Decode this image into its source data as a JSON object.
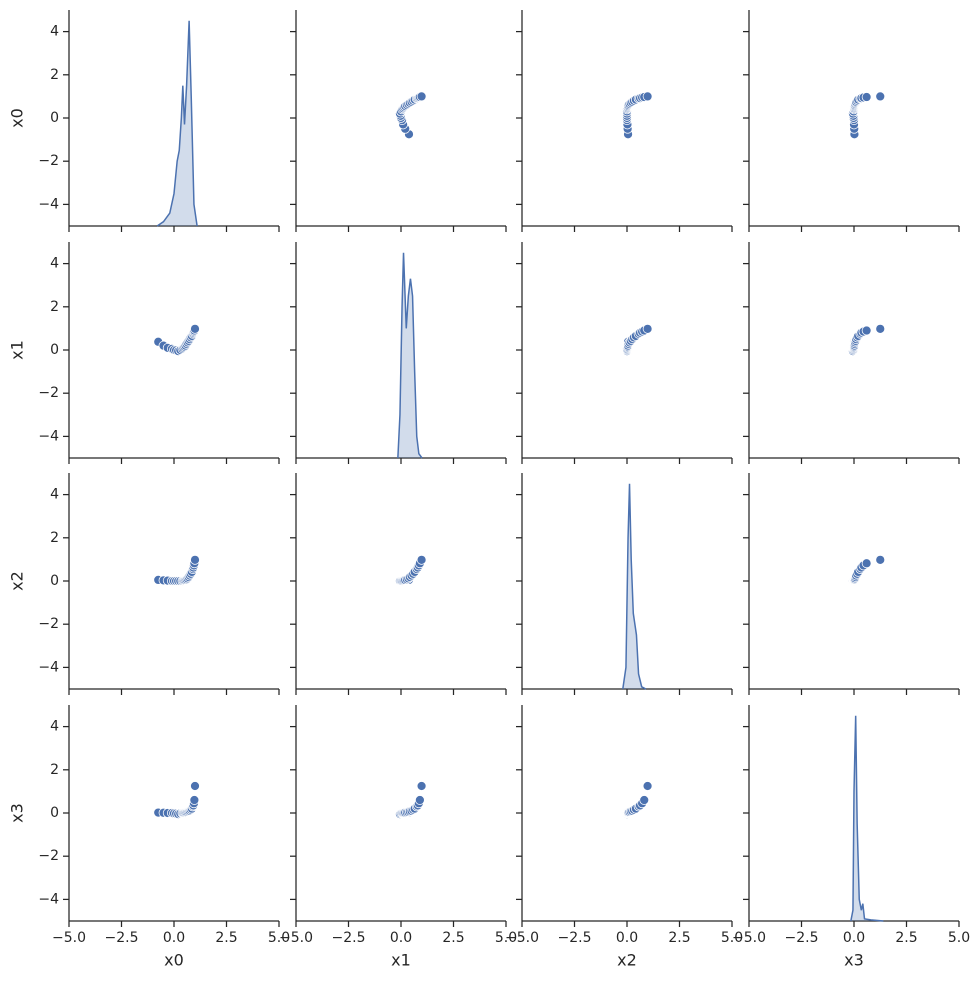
{
  "chart_data": {
    "type": "pairplot",
    "color": "#4c72b0",
    "xlim": [
      -5,
      5
    ],
    "ylim": [
      -5,
      5
    ],
    "xticks": [
      {
        "value": -5,
        "label": "−5.0"
      },
      {
        "value": -2.5,
        "label": "−2.5"
      },
      {
        "value": 0,
        "label": "0.0"
      },
      {
        "value": 2.5,
        "label": "2.5"
      },
      {
        "value": 5,
        "label": "5.0"
      }
    ],
    "yticks": [
      {
        "value": -4,
        "label": "−4"
      },
      {
        "value": -2,
        "label": "−2"
      },
      0,
      2,
      4
    ],
    "columns": [
      {
        "name": "x0",
        "values": [
          -0.75,
          -0.5,
          -0.3,
          -0.1,
          0.0,
          0.1,
          0.2,
          0.3,
          0.4,
          0.45,
          0.5,
          0.55,
          0.6,
          0.65,
          0.7,
          0.75,
          0.8,
          0.85,
          0.9,
          0.92,
          0.95,
          0.97,
          1.0
        ],
        "kde": {
          "x": [
            -0.8,
            -0.5,
            -0.2,
            0.0,
            0.15,
            0.25,
            0.35,
            0.42,
            0.5,
            0.6,
            0.72,
            0.82,
            0.95,
            1.1
          ],
          "y": [
            -5,
            -4.8,
            -4.4,
            -3.5,
            -2,
            -1.5,
            0,
            1.5,
            -0.3,
            1.5,
            4.5,
            1,
            -4,
            -5
          ]
        }
      },
      {
        "name": "x1",
        "values": [
          0.38,
          0.2,
          0.1,
          0.05,
          0.0,
          -0.02,
          -0.05,
          0.0,
          0.05,
          0.1,
          0.15,
          0.2,
          0.28,
          0.35,
          0.42,
          0.5,
          0.58,
          0.65,
          0.75,
          0.8,
          0.85,
          0.9,
          0.98
        ],
        "kde": {
          "x": [
            -0.15,
            -0.05,
            0.05,
            0.12,
            0.25,
            0.35,
            0.45,
            0.55,
            0.65,
            0.75,
            0.85,
            1.0
          ],
          "y": [
            -5,
            -3,
            2,
            4.5,
            1,
            2.5,
            3.3,
            2.5,
            -1,
            -4,
            -4.8,
            -5
          ]
        }
      },
      {
        "name": "x2",
        "values": [
          0.05,
          0.03,
          0.02,
          0.0,
          0.0,
          0.0,
          0.0,
          0.0,
          0.0,
          0.02,
          0.03,
          0.05,
          0.08,
          0.12,
          0.18,
          0.25,
          0.33,
          0.42,
          0.55,
          0.62,
          0.72,
          0.82,
          0.98
        ],
        "kde": {
          "x": [
            -0.2,
            -0.05,
            0.05,
            0.12,
            0.2,
            0.3,
            0.45,
            0.55,
            0.7,
            0.9
          ],
          "y": [
            -5,
            -4,
            2,
            4.5,
            1,
            -1.5,
            -2.5,
            -4.3,
            -4.9,
            -5
          ]
        }
      },
      {
        "name": "x3",
        "values": [
          0.02,
          0.01,
          0.0,
          0.0,
          -0.02,
          -0.03,
          -0.05,
          -0.02,
          0.0,
          0.0,
          0.01,
          0.02,
          0.03,
          0.05,
          0.08,
          0.1,
          0.15,
          0.2,
          0.3,
          0.35,
          0.45,
          0.6,
          1.25
        ],
        "kde": {
          "x": [
            -0.15,
            -0.05,
            0.0,
            0.08,
            0.15,
            0.25,
            0.35,
            0.42,
            0.5,
            0.8,
            1.4
          ],
          "y": [
            -5,
            -4.5,
            1,
            4.5,
            -0.5,
            -4,
            -4.5,
            -4.2,
            -4.9,
            -4.95,
            -5
          ]
        }
      }
    ]
  }
}
